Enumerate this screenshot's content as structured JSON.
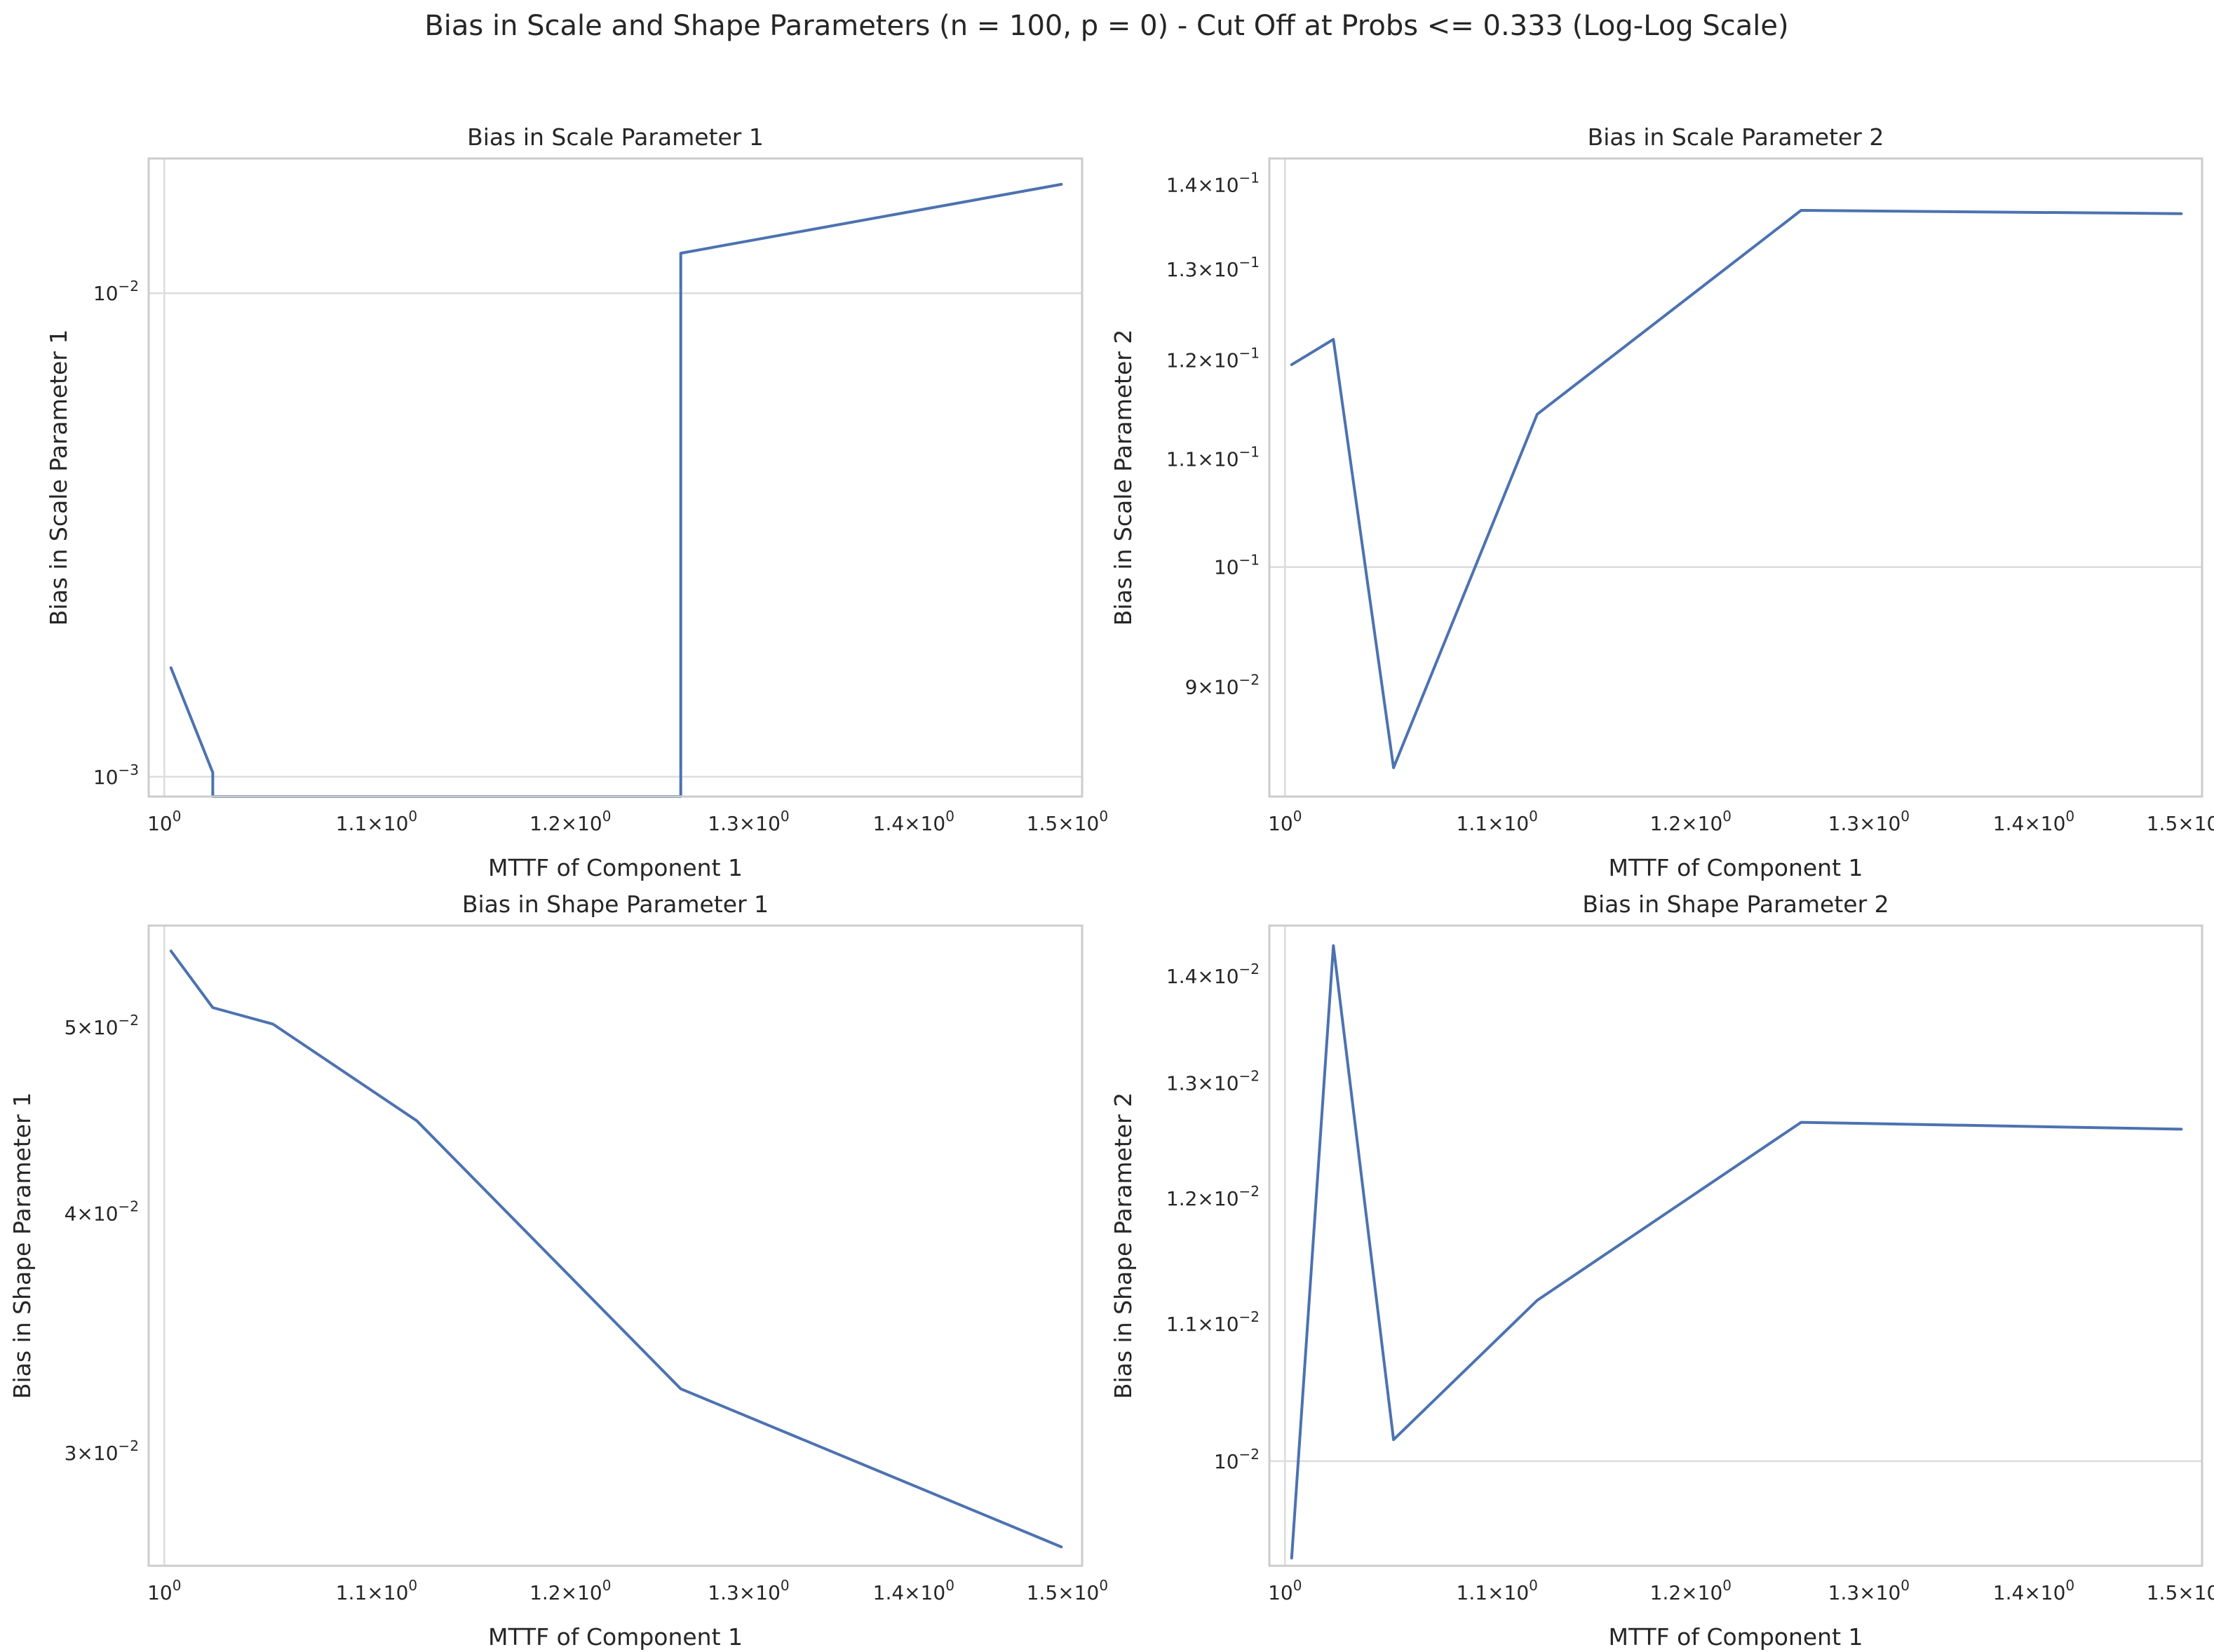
{
  "figure": {
    "suptitle": "Bias in Scale and Shape Parameters (n = 100, p = 0) - Cut Off at Probs <= 0.333 (Log-Log Scale)"
  },
  "colors": {
    "series": "#4c72b0",
    "grid": "#dddddd",
    "frame": "#cccccc",
    "text": "#262626"
  },
  "chart_data": [
    {
      "type": "line",
      "title": "Bias in Scale Parameter 1",
      "xlabel": "MTTF of Component 1",
      "ylabel": "Bias in Scale Parameter 1",
      "xscale": "log",
      "yscale": "log",
      "grid": true,
      "xlim": [
        0.993,
        1.51
      ],
      "ylim": [
        0.00091,
        0.019
      ],
      "xticks": [
        {
          "value": 1.0,
          "base": "10",
          "exp": "0"
        },
        {
          "value": 1.1,
          "base": "1.1×10",
          "exp": "0"
        },
        {
          "value": 1.2,
          "base": "1.2×10",
          "exp": "0"
        },
        {
          "value": 1.3,
          "base": "1.3×10",
          "exp": "0"
        },
        {
          "value": 1.4,
          "base": "1.4×10",
          "exp": "0"
        },
        {
          "value": 1.5,
          "base": "1.5×10",
          "exp": "0"
        }
      ],
      "yticks": [
        {
          "value": 0.001,
          "base": "10",
          "exp": "−3"
        },
        {
          "value": 0.01,
          "base": "10",
          "exp": "−2"
        }
      ],
      "x": [
        1.003,
        1.022,
        1.022,
        1.261,
        1.261,
        1.496
      ],
      "y": [
        0.00168,
        0.00102,
        0.00091,
        0.00091,
        0.0121,
        0.0168
      ]
    },
    {
      "type": "line",
      "title": "Bias in Scale Parameter 2",
      "xlabel": "MTTF of Component 1",
      "ylabel": "Bias in Scale Parameter 2",
      "xscale": "log",
      "yscale": "log",
      "grid": true,
      "xlim": [
        0.993,
        1.51
      ],
      "ylim": [
        0.0817,
        0.1433
      ],
      "xticks": [
        {
          "value": 1.0,
          "base": "10",
          "exp": "0"
        },
        {
          "value": 1.1,
          "base": "1.1×10",
          "exp": "0"
        },
        {
          "value": 1.2,
          "base": "1.2×10",
          "exp": "0"
        },
        {
          "value": 1.3,
          "base": "1.3×10",
          "exp": "0"
        },
        {
          "value": 1.4,
          "base": "1.4×10",
          "exp": "0"
        },
        {
          "value": 1.5,
          "base": "1.5×10",
          "exp": "0"
        }
      ],
      "yticks": [
        {
          "value": 0.09,
          "base": "9×10",
          "exp": "−2"
        },
        {
          "value": 0.1,
          "base": "10",
          "exp": "−1"
        },
        {
          "value": 0.11,
          "base": "1.1×10",
          "exp": "−1"
        },
        {
          "value": 0.12,
          "base": "1.2×10",
          "exp": "−1"
        },
        {
          "value": 0.13,
          "base": "1.3×10",
          "exp": "−1"
        },
        {
          "value": 0.14,
          "base": "1.4×10",
          "exp": "−1"
        }
      ],
      "x": [
        1.003,
        1.022,
        1.05,
        1.12,
        1.261,
        1.496
      ],
      "y": [
        0.1195,
        0.1222,
        0.0838,
        0.1144,
        0.1369,
        0.1365
      ]
    },
    {
      "type": "line",
      "title": "Bias in Shape Parameter 1",
      "xlabel": "MTTF of Component 1",
      "ylabel": "Bias in Shape Parameter 1",
      "xscale": "log",
      "yscale": "log",
      "grid": true,
      "xlim": [
        0.993,
        1.51
      ],
      "ylim": [
        0.0262,
        0.0565
      ],
      "xticks": [
        {
          "value": 1.0,
          "base": "10",
          "exp": "0"
        },
        {
          "value": 1.1,
          "base": "1.1×10",
          "exp": "0"
        },
        {
          "value": 1.2,
          "base": "1.2×10",
          "exp": "0"
        },
        {
          "value": 1.3,
          "base": "1.3×10",
          "exp": "0"
        },
        {
          "value": 1.4,
          "base": "1.4×10",
          "exp": "0"
        },
        {
          "value": 1.5,
          "base": "1.5×10",
          "exp": "0"
        }
      ],
      "yticks": [
        {
          "value": 0.03,
          "base": "3×10",
          "exp": "−2"
        },
        {
          "value": 0.04,
          "base": "4×10",
          "exp": "−2"
        },
        {
          "value": 0.05,
          "base": "5×10",
          "exp": "−2"
        }
      ],
      "x": [
        1.003,
        1.022,
        1.05,
        1.12,
        1.261,
        1.496
      ],
      "y": [
        0.0548,
        0.0512,
        0.0502,
        0.0447,
        0.0324,
        0.0268
      ]
    },
    {
      "type": "line",
      "title": "Bias in Shape Parameter 2",
      "xlabel": "MTTF of Component 1",
      "ylabel": "Bias in Shape Parameter 2",
      "xscale": "log",
      "yscale": "log",
      "grid": true,
      "xlim": [
        0.993,
        1.51
      ],
      "ylim": [
        0.0093,
        0.0145
      ],
      "xticks": [
        {
          "value": 1.0,
          "base": "10",
          "exp": "0"
        },
        {
          "value": 1.1,
          "base": "1.1×10",
          "exp": "0"
        },
        {
          "value": 1.2,
          "base": "1.2×10",
          "exp": "0"
        },
        {
          "value": 1.3,
          "base": "1.3×10",
          "exp": "0"
        },
        {
          "value": 1.4,
          "base": "1.4×10",
          "exp": "0"
        },
        {
          "value": 1.5,
          "base": "1.5×10",
          "exp": "0"
        }
      ],
      "yticks": [
        {
          "value": 0.01,
          "base": "10",
          "exp": "−2"
        },
        {
          "value": 0.011,
          "base": "1.1×10",
          "exp": "−2"
        },
        {
          "value": 0.012,
          "base": "1.2×10",
          "exp": "−2"
        },
        {
          "value": 0.013,
          "base": "1.3×10",
          "exp": "−2"
        },
        {
          "value": 0.014,
          "base": "1.4×10",
          "exp": "−2"
        }
      ],
      "x": [
        1.003,
        1.022,
        1.05,
        1.12,
        1.261,
        1.496
      ],
      "y": [
        0.00935,
        0.0143,
        0.01015,
        0.01118,
        0.01265,
        0.01259
      ]
    }
  ]
}
